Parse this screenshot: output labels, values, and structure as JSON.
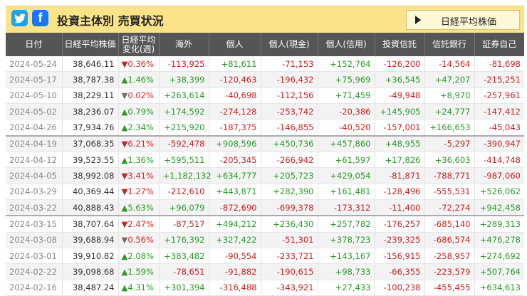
{
  "header": {
    "title": "投資主体別 売買状況",
    "index_button_label": "日経平均株価",
    "twitter_icon": "twitter-icon",
    "facebook_icon": "facebook-icon"
  },
  "columns": [
    "日付",
    "日経平均株価",
    "日経平均\n変化(週)",
    "海外",
    "個人",
    "個人(現金)",
    "個人(信用)",
    "投資信託",
    "信託銀行",
    "証券自己"
  ],
  "rows": [
    {
      "date": "2024-05-24",
      "nikkei": "38,646.11",
      "dir": "down",
      "chg": "0.36%",
      "v": [
        "-113,925",
        "+81,611",
        "-71,153",
        "+152,764",
        "-126,200",
        "-14,564",
        "-81,698"
      ]
    },
    {
      "date": "2024-05-17",
      "nikkei": "38,787.38",
      "dir": "up",
      "chg": "1.46%",
      "v": [
        "+38,399",
        "-120,463",
        "-196,432",
        "+75,969",
        "+36,545",
        "+47,207",
        "-215,251"
      ]
    },
    {
      "date": "2024-05-10",
      "nikkei": "38,229.11",
      "dir": "flat",
      "chg": "0.02%",
      "v": [
        "+263,614",
        "-40,698",
        "-112,156",
        "+71,459",
        "-49,948",
        "+8,970",
        "-257,961"
      ]
    },
    {
      "date": "2024-05-02",
      "nikkei": "38,236.07",
      "dir": "up",
      "chg": "0.79%",
      "v": [
        "+174,592",
        "-274,128",
        "-253,742",
        "-20,386",
        "+145,905",
        "+24,777",
        "-147,412"
      ]
    },
    {
      "date": "2024-04-26",
      "nikkei": "37,934.76",
      "dir": "up",
      "chg": "2.34%",
      "v": [
        "+215,920",
        "-187,375",
        "-146,855",
        "-40,520",
        "-157,001",
        "+166,653",
        "-45,043"
      ]
    },
    {
      "date": "2024-04-19",
      "nikkei": "37,068.35",
      "dir": "down",
      "chg": "6.21%",
      "v": [
        "-592,478",
        "+908,596",
        "+450,736",
        "+457,860",
        "+48,955",
        "-5,297",
        "-390,947"
      ]
    },
    {
      "date": "2024-04-12",
      "nikkei": "39,523.55",
      "dir": "up",
      "chg": "1.36%",
      "v": [
        "+595,511",
        "-205,345",
        "-266,942",
        "+61,597",
        "+17,826",
        "+36,603",
        "-414,748"
      ]
    },
    {
      "date": "2024-04-05",
      "nikkei": "38,992.08",
      "dir": "down",
      "chg": "3.41%",
      "v": [
        "+1,182,132",
        "+634,777",
        "+205,723",
        "+429,054",
        "-81,871",
        "-788,771",
        "-987,060"
      ]
    },
    {
      "date": "2024-03-29",
      "nikkei": "40,369.44",
      "dir": "down",
      "chg": "1.27%",
      "v": [
        "-212,610",
        "+443,871",
        "+282,390",
        "+161,481",
        "-128,496",
        "-555,531",
        "+526,062"
      ]
    },
    {
      "date": "2024-03-22",
      "nikkei": "40,888.43",
      "dir": "up",
      "chg": "5.63%",
      "v": [
        "+96,079",
        "-872,690",
        "-699,378",
        "-173,312",
        "-11,400",
        "-72,274",
        "+942,458"
      ]
    },
    {
      "date": "2024-03-15",
      "nikkei": "38,707.64",
      "dir": "down",
      "chg": "2.47%",
      "v": [
        "-87,517",
        "+494,212",
        "+236,430",
        "+257,782",
        "-176,257",
        "-685,140",
        "+289,313"
      ]
    },
    {
      "date": "2024-03-08",
      "nikkei": "39,688.94",
      "dir": "flat",
      "chg": "0.56%",
      "v": [
        "+176,392",
        "+327,422",
        "-51,301",
        "+378,723",
        "-239,325",
        "-686,574",
        "+476,278"
      ]
    },
    {
      "date": "2024-03-01",
      "nikkei": "39,910.82",
      "dir": "up",
      "chg": "2.08%",
      "v": [
        "+383,482",
        "-90,554",
        "-233,721",
        "+143,167",
        "-156,915",
        "-258,957",
        "+274,692"
      ]
    },
    {
      "date": "2024-02-22",
      "nikkei": "39,098.68",
      "dir": "up",
      "chg": "1.59%",
      "v": [
        "-78,651",
        "-91,882",
        "-190,615",
        "+98,733",
        "-66,355",
        "-223,579",
        "+507,764"
      ]
    },
    {
      "date": "2024-02-16",
      "nikkei": "38,487.24",
      "dir": "up",
      "chg": "4.31%",
      "v": [
        "+301,394",
        "-316,488",
        "-343,921",
        "+27,433",
        "-100,238",
        "-455,455",
        "+634,613"
      ]
    }
  ],
  "colors": {
    "positive": "#2a9a2a",
    "negative": "#cc2222",
    "header_bg": "#fbe38a",
    "table_header_bg": "#555555"
  }
}
